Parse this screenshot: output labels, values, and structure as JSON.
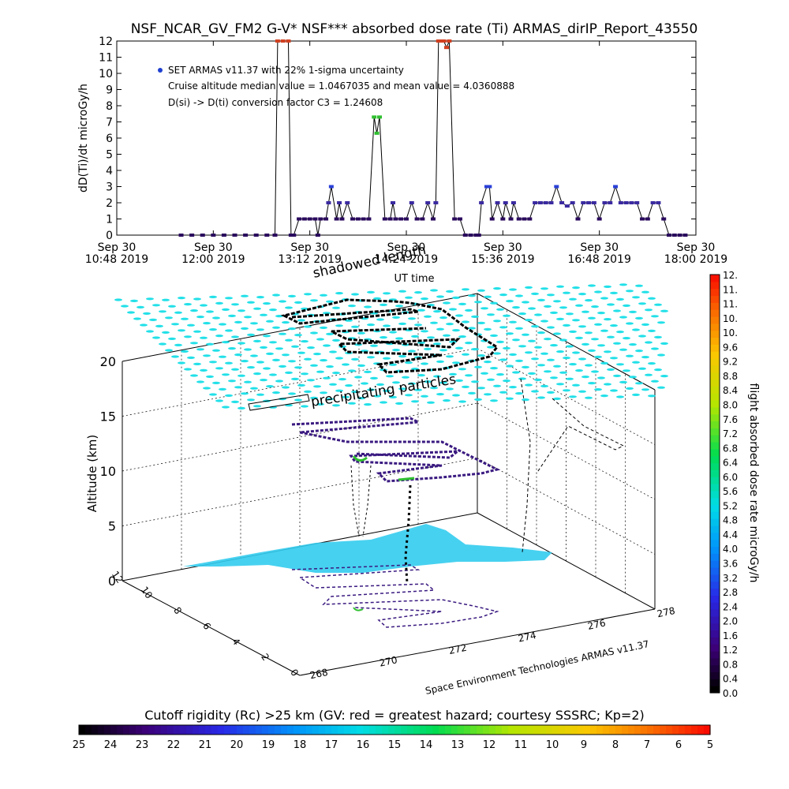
{
  "title": "NSF_NCAR_GV_FM2 G-V* NSF*** absorbed dose rate (Ti) ARMAS_dirIP_Report_43550",
  "colors": {
    "dose_point": "#2a0a5e",
    "cyan_swarm": "#22e0e8",
    "cyan_fill": "#33ccee",
    "track": "#000000"
  },
  "chart_data": [
    {
      "type": "line",
      "title": "NSF_NCAR_GV_FM2 G-V* NSF*** absorbed dose rate (Ti) ARMAS_dirIP_Report_43550",
      "xlabel": "UT time",
      "ylabel": "dD(Ti)/dt microGy/h",
      "ylim": [
        0,
        12
      ],
      "yticks": [
        "0",
        "1",
        "2",
        "3",
        "4",
        "5",
        "6",
        "7",
        "8",
        "9",
        "10",
        "11",
        "12"
      ],
      "xticks": [
        {
          "line1": "Sep 30",
          "line2": "10:48 2019"
        },
        {
          "line1": "Sep 30",
          "line2": "12:00 2019"
        },
        {
          "line1": "Sep 30",
          "line2": "13:12 2019"
        },
        {
          "line1": "Sep 30",
          "line2": "14:24 2019"
        },
        {
          "line1": "Sep 30",
          "line2": "15:36 2019"
        },
        {
          "line1": "Sep 30",
          "line2": "16:48 2019"
        },
        {
          "line1": "Sep 30",
          "line2": "18:00 2019"
        }
      ],
      "xlim_minutes_from_1048": [
        0,
        432
      ],
      "annotations": [
        "SET ARMAS v11.37 with 22% 1-sigma uncertainty",
        "Cruise altitude median value = 1.0467035 and mean value = 4.0360888",
        "D(si) -> D(ti) conversion factor C3 = 1.24608"
      ],
      "series": [
        {
          "x": [
            48,
            56,
            64,
            72,
            80,
            88,
            96,
            104,
            112,
            118,
            120,
            124,
            128,
            130,
            132,
            136,
            140,
            144,
            148,
            150,
            152,
            156,
            158,
            160,
            164,
            166,
            168,
            172,
            176,
            180,
            184,
            188,
            192,
            194,
            196,
            200,
            204,
            206,
            208,
            212,
            216,
            220,
            224,
            228,
            232,
            236,
            238,
            240,
            242,
            244,
            246,
            248,
            252,
            256,
            260,
            264,
            268,
            270,
            272,
            276,
            278,
            280,
            284,
            288,
            290,
            294,
            296,
            300,
            304,
            308,
            312,
            316,
            320,
            324,
            328,
            332,
            336,
            340,
            344,
            348,
            352,
            356,
            360,
            364,
            368,
            372,
            376,
            380,
            384,
            388,
            392,
            396,
            400,
            404,
            408,
            412,
            416,
            420,
            424
          ],
          "values": [
            0,
            0,
            0,
            0,
            0,
            0,
            0,
            0,
            0,
            0,
            12,
            12,
            12,
            0,
            0,
            1,
            1,
            1,
            1,
            0,
            1,
            1,
            2,
            3,
            1,
            2,
            1,
            2,
            1,
            1,
            1,
            1,
            7.3,
            6.3,
            7.3,
            1,
            1,
            2,
            1,
            1,
            1,
            2,
            1,
            1,
            2,
            1,
            2,
            12,
            12,
            12,
            11.6,
            12,
            1,
            1,
            0,
            0,
            0,
            0,
            2,
            3,
            3,
            1,
            2,
            1,
            2,
            1,
            2,
            1,
            1,
            1,
            2,
            2,
            2,
            2,
            3,
            2,
            1.8,
            2,
            1,
            2,
            2,
            2,
            1,
            2,
            2,
            3,
            2,
            2,
            2,
            2,
            1,
            1,
            2,
            2,
            1,
            0,
            0,
            0,
            0
          ]
        }
      ]
    },
    {
      "type": "scatter",
      "subtype": "3d-flight-track",
      "zlabel": "Altitude (km)",
      "zticks": [
        "0",
        "5",
        "10",
        "15",
        "20"
      ],
      "ylabel_ticks": [
        "0",
        "2",
        "4",
        "6",
        "8",
        "10",
        "12"
      ],
      "xlabel_ticks": [
        "268",
        "270",
        "272",
        "274",
        "276",
        "278"
      ],
      "annotations": [
        "shadowed length",
        "precipitating particles"
      ],
      "credit": "Space Environment Technologies ARMAS v11.37",
      "colorbar": {
        "label": "flight absorbed dose rate microGy/h",
        "ticks": [
          "0.0",
          "0.4",
          "0.8",
          "1.2",
          "1.6",
          "2.0",
          "2.4",
          "2.8",
          "3.2",
          "3.6",
          "4.0",
          "4.4",
          "4.8",
          "5.2",
          "5.6",
          "6.0",
          "6.4",
          "6.8",
          "7.2",
          "7.6",
          "8.0",
          "8.4",
          "8.8",
          "9.2",
          "9.6",
          "10.",
          "10.",
          "11.",
          "11.",
          "12."
        ],
        "range": [
          0,
          12
        ]
      }
    },
    {
      "type": "heatmap",
      "subtype": "horizontal-colorbar",
      "title": "Cutoff rigidity (Rc) >25 km (GV: red = greatest hazard; courtesy SSSRC; Kp=2)",
      "ticks": [
        "25",
        "24",
        "23",
        "22",
        "21",
        "20",
        "19",
        "18",
        "17",
        "16",
        "15",
        "14",
        "13",
        "12",
        "11",
        "10",
        "9",
        "8",
        "7",
        "6",
        "5"
      ],
      "range": [
        25,
        5
      ]
    }
  ]
}
